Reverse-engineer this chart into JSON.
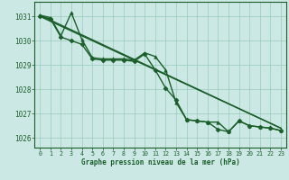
{
  "bg_color": "#cce8e4",
  "grid_color": "#99ccbb",
  "line_color": "#1a5e2a",
  "xlabel": "Graphe pression niveau de la mer (hPa)",
  "ylim": [
    1025.6,
    1031.6
  ],
  "xlim": [
    -0.5,
    23.5
  ],
  "yticks": [
    1026,
    1027,
    1028,
    1029,
    1030,
    1031
  ],
  "xticks": [
    0,
    1,
    2,
    3,
    4,
    5,
    6,
    7,
    8,
    9,
    10,
    11,
    12,
    13,
    14,
    15,
    16,
    17,
    18,
    19,
    20,
    21,
    22,
    23
  ],
  "series": [
    {
      "x": [
        0,
        23
      ],
      "y": [
        1031.05,
        1026.4
      ],
      "marker": null,
      "lw": 1.0
    },
    {
      "x": [
        0,
        23
      ],
      "y": [
        1031.0,
        1026.4
      ],
      "marker": null,
      "lw": 1.0
    },
    {
      "x": [
        0,
        1,
        2,
        3,
        4,
        5,
        6,
        7,
        8,
        9,
        10,
        11,
        12,
        13,
        14,
        15,
        16,
        17,
        18,
        19,
        20,
        21,
        22,
        23
      ],
      "y": [
        1031.0,
        1030.9,
        1030.15,
        1030.0,
        1029.85,
        1029.25,
        1029.2,
        1029.2,
        1029.2,
        1029.15,
        1029.45,
        1028.8,
        1028.05,
        1027.55,
        1026.75,
        1026.7,
        1026.65,
        1026.35,
        1026.25,
        1026.7,
        1026.5,
        1026.45,
        1026.4,
        1026.3
      ],
      "marker": "D",
      "ms": 2.5,
      "lw": 1.0
    },
    {
      "x": [
        0,
        1,
        2,
        3,
        4,
        5,
        6,
        7,
        8,
        9,
        10,
        11,
        12,
        13,
        14,
        15,
        16,
        17,
        18,
        19,
        20,
        21,
        22,
        23
      ],
      "y": [
        1031.05,
        1030.95,
        1030.2,
        1031.15,
        1030.05,
        1029.3,
        1029.25,
        1029.25,
        1029.25,
        1029.2,
        1029.5,
        1029.35,
        1028.8,
        1027.45,
        1026.75,
        1026.7,
        1026.65,
        1026.65,
        1026.25,
        1026.7,
        1026.5,
        1026.45,
        1026.4,
        1026.3
      ],
      "marker": "^",
      "ms": 2.5,
      "lw": 1.0
    }
  ]
}
